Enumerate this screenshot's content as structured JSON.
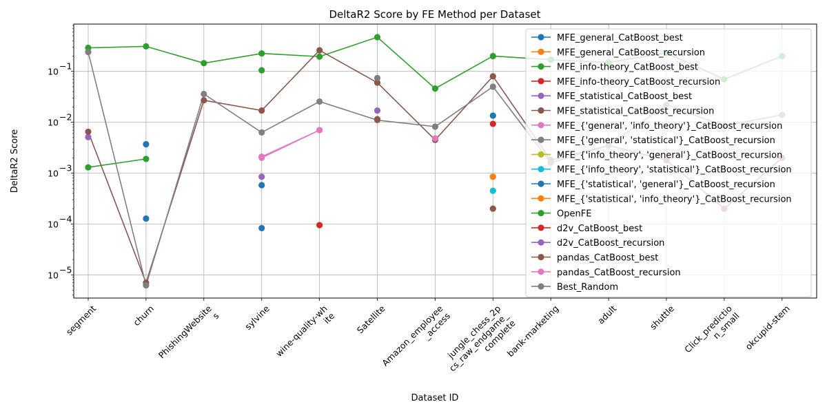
{
  "chart_data": {
    "type": "line",
    "title": "DeltaR2 Score  by FE Method per Dataset",
    "xlabel": "Dataset ID",
    "ylabel": "DeltaR2 Score",
    "yscale": "log",
    "ylim": [
      3.5e-06,
      0.85
    ],
    "y_ticks": [
      {
        "value": 1e-05,
        "base": "10",
        "exp": "−5"
      },
      {
        "value": 0.0001,
        "base": "10",
        "exp": "−4"
      },
      {
        "value": 0.001,
        "base": "10",
        "exp": "−3"
      },
      {
        "value": 0.01,
        "base": "10",
        "exp": "−2"
      },
      {
        "value": 0.1,
        "base": "10",
        "exp": "−1"
      }
    ],
    "grid": true,
    "legend_position": "top-right",
    "categories": [
      [
        "segment"
      ],
      [
        "churn"
      ],
      [
        "PhishingWebsite",
        "s"
      ],
      [
        "sylvine"
      ],
      [
        "wine-quality-wh",
        "ite"
      ],
      [
        "Satellite"
      ],
      [
        "Amazon_employee",
        "_access"
      ],
      [
        "jungle_chess_2p",
        "cs_raw_endgame_",
        "complete"
      ],
      [
        "bank-marketing"
      ],
      [
        "adult"
      ],
      [
        "shuttle"
      ],
      [
        "Click_predictio",
        "n_small"
      ],
      [
        "okcupid-stem"
      ]
    ],
    "series": [
      {
        "name": "MFE_general_CatBoost_best",
        "color": "#1f77b4",
        "values": [
          null,
          0.0037,
          null,
          0.00058,
          null,
          null,
          null,
          0.0135,
          null,
          null,
          null,
          null,
          null
        ]
      },
      {
        "name": "MFE_general_CatBoost_recursion",
        "color": "#ff7f0e",
        "values": [
          null,
          null,
          null,
          null,
          null,
          null,
          null,
          0.00085,
          null,
          null,
          null,
          null,
          null
        ]
      },
      {
        "name": "MFE_info-theory_CatBoost_best",
        "color": "#2ca02c",
        "values": [
          0.0013,
          0.0019,
          null,
          0.105,
          null,
          null,
          null,
          null,
          null,
          null,
          null,
          null,
          null
        ]
      },
      {
        "name": "MFE_info-theory_CatBoost_recursion",
        "color": "#d62728",
        "values": [
          null,
          null,
          null,
          null,
          9.5e-05,
          null,
          null,
          0.0093,
          null,
          null,
          null,
          null,
          null
        ]
      },
      {
        "name": "MFE_statistical_CatBoost_best",
        "color": "#9467bd",
        "values": [
          0.0051,
          null,
          null,
          0.00085,
          null,
          0.017,
          null,
          null,
          null,
          null,
          null,
          null,
          null
        ]
      },
      {
        "name": "MFE_statistical_CatBoost_recursion",
        "color": "#8c564b",
        "values": [
          null,
          null,
          null,
          null,
          null,
          null,
          null,
          0.0002,
          null,
          null,
          null,
          null,
          null
        ]
      },
      {
        "name": "MFE_{'general', 'info_theory'}_CatBoost_recursion",
        "color": "#e377c2",
        "values": [
          null,
          null,
          null,
          0.0021,
          0.007,
          null,
          0.0047,
          null,
          null,
          null,
          null,
          null,
          null
        ]
      },
      {
        "name": "MFE_{'general', 'statistical'}_CatBoost_recursion",
        "color": "#7f7f7f",
        "values": [
          null,
          null,
          null,
          null,
          null,
          null,
          null,
          null,
          null,
          null,
          null,
          null,
          null
        ]
      },
      {
        "name": "MFE_{'info_theory', 'general'}_CatBoost_recursion",
        "color": "#bcbd22",
        "values": [
          null,
          null,
          null,
          null,
          null,
          null,
          null,
          null,
          null,
          null,
          null,
          null,
          null
        ]
      },
      {
        "name": "MFE_{'info_theory', 'statistical'}_CatBoost_recursion",
        "color": "#17becf",
        "values": [
          null,
          null,
          null,
          null,
          null,
          null,
          null,
          0.00045,
          null,
          null,
          null,
          null,
          null
        ]
      },
      {
        "name": "MFE_{'statistical', 'general'}_CatBoost_recursion",
        "color": "#1f77b4",
        "values": [
          null,
          0.000128,
          null,
          8.3e-05,
          null,
          null,
          null,
          null,
          null,
          null,
          null,
          null,
          null
        ]
      },
      {
        "name": "MFE_{'statistical', 'info_theory'}_CatBoost_recursion",
        "color": "#ff7f0e",
        "values": [
          null,
          null,
          null,
          null,
          null,
          null,
          null,
          null,
          null,
          null,
          null,
          null,
          null
        ]
      },
      {
        "name": "OpenFE",
        "color": "#2ca02c",
        "values": [
          0.29,
          0.31,
          0.145,
          0.225,
          0.195,
          0.47,
          0.046,
          0.2,
          0.17,
          0.15,
          0.23,
          0.07,
          0.2
        ]
      },
      {
        "name": "d2v_CatBoost_best",
        "color": "#d62728",
        "values": [
          null,
          null,
          null,
          null,
          null,
          null,
          null,
          null,
          null,
          null,
          null,
          null,
          null
        ]
      },
      {
        "name": "d2v_CatBoost_recursion",
        "color": "#9467bd",
        "values": [
          null,
          null,
          null,
          null,
          null,
          null,
          null,
          null,
          null,
          null,
          null,
          null,
          null
        ]
      },
      {
        "name": "pandas_CatBoost_best",
        "color": "#8c564b",
        "values": [
          0.0065,
          7e-06,
          0.027,
          0.017,
          0.26,
          0.06,
          0.0045,
          0.08,
          0.0018,
          0.0035,
          0.0018,
          0.0002,
          0.002
        ]
      },
      {
        "name": "pandas_CatBoost_recursion",
        "color": "#e377c2",
        "values": [
          null,
          null,
          null,
          0.002,
          0.007,
          null,
          0.0048,
          null,
          null,
          null,
          null,
          null,
          null
        ]
      },
      {
        "name": "Best_Random",
        "color": "#7f7f7f",
        "values": [
          0.24,
          6.2e-06,
          0.036,
          0.0063,
          0.0255,
          0.011,
          0.0082,
          0.05,
          0.0016,
          0.0035,
          0.022,
          0.0085,
          0.014
        ]
      }
    ],
    "extra_markers": [
      {
        "series": "pandas_CatBoost_best",
        "category_index": 5,
        "value": 0.0115,
        "color": "#8c564b"
      },
      {
        "series": "Best_Random",
        "category_index": 5,
        "value": 0.074,
        "color": "#7f7f7f"
      }
    ]
  }
}
